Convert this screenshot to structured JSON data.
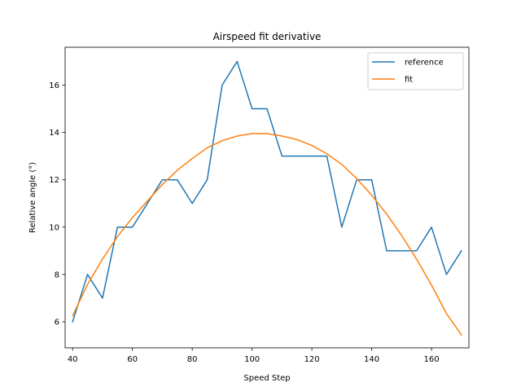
{
  "chart_data": {
    "type": "line",
    "title": "Airspeed fit derivative",
    "xlabel": "Speed Step",
    "ylabel": "Relative angle (°)",
    "xlim": [
      37.5,
      172.5
    ],
    "ylim": [
      4.9,
      17.6
    ],
    "xticks": [
      40,
      60,
      80,
      100,
      120,
      140,
      160
    ],
    "yticks": [
      6,
      8,
      10,
      12,
      14,
      16
    ],
    "grid": false,
    "legend_position": "top-right",
    "x": [
      40,
      45,
      50,
      55,
      60,
      65,
      70,
      75,
      80,
      85,
      90,
      95,
      100,
      105,
      110,
      115,
      120,
      125,
      130,
      135,
      140,
      145,
      150,
      155,
      160,
      165,
      170
    ],
    "series": [
      {
        "name": "reference",
        "color": "#1f77b4",
        "values": [
          6,
          8,
          7,
          10,
          10,
          11,
          12,
          12,
          11,
          12,
          16,
          17,
          15,
          15,
          13,
          13,
          13,
          13,
          10,
          12,
          12,
          9,
          9,
          9,
          10,
          8,
          9
        ]
      },
      {
        "name": "fit",
        "color": "#ff7f0e",
        "values": [
          6.25,
          7.58,
          8.65,
          9.6,
          10.4,
          11.1,
          11.8,
          12.4,
          12.9,
          13.35,
          13.65,
          13.85,
          13.95,
          13.95,
          13.85,
          13.7,
          13.45,
          13.1,
          12.65,
          12.05,
          11.35,
          10.55,
          9.65,
          8.65,
          7.55,
          6.35,
          5.45
        ]
      }
    ]
  }
}
